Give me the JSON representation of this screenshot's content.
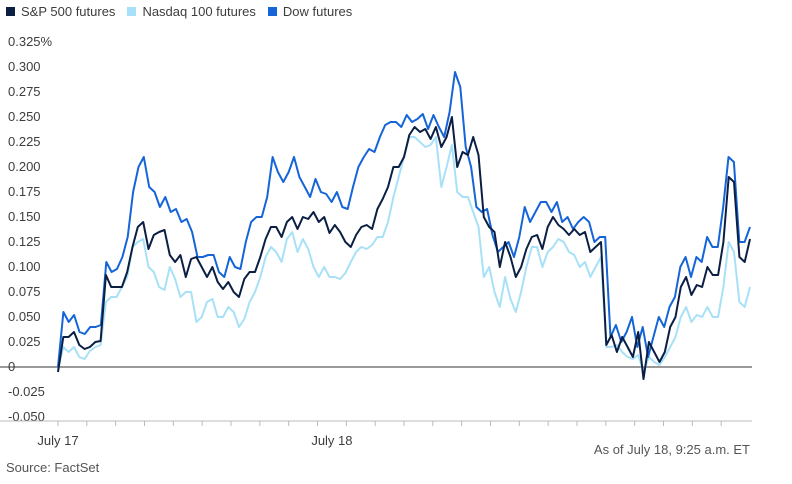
{
  "chart_data": {
    "type": "line",
    "ylim": [
      -0.05,
      0.325
    ],
    "y_ticks": [
      "0.325%",
      "0.300",
      "0.275",
      "0.250",
      "0.225",
      "0.200",
      "0.175",
      "0.150",
      "0.125",
      "0.100",
      "0.075",
      "0.050",
      "0.025",
      "0",
      "-0.025",
      "-0.050"
    ],
    "y_tick_values": [
      0.325,
      0.3,
      0.275,
      0.25,
      0.225,
      0.2,
      0.175,
      0.15,
      0.125,
      0.1,
      0.075,
      0.05,
      0.025,
      0,
      -0.025,
      -0.05
    ],
    "x_labels": [
      "July 17",
      "July 18"
    ],
    "grid": false,
    "legend_position": "top-left",
    "series": [
      {
        "name": "S&P 500 futures",
        "color": "#0b1f44",
        "values": [
          -0.005,
          0.03,
          0.03,
          0.035,
          0.022,
          0.018,
          0.02,
          0.025,
          0.026,
          0.092,
          0.08,
          0.08,
          0.08,
          0.095,
          0.12,
          0.14,
          0.145,
          0.118,
          0.132,
          0.135,
          0.137,
          0.112,
          0.105,
          0.112,
          0.09,
          0.108,
          0.11,
          0.1,
          0.09,
          0.1,
          0.085,
          0.078,
          0.085,
          0.075,
          0.07,
          0.088,
          0.095,
          0.095,
          0.11,
          0.128,
          0.14,
          0.14,
          0.13,
          0.145,
          0.15,
          0.138,
          0.15,
          0.148,
          0.155,
          0.145,
          0.15,
          0.134,
          0.142,
          0.135,
          0.125,
          0.12,
          0.132,
          0.14,
          0.142,
          0.138,
          0.158,
          0.168,
          0.18,
          0.2,
          0.2,
          0.21,
          0.232,
          0.24,
          0.235,
          0.238,
          0.228,
          0.24,
          0.22,
          0.23,
          0.25,
          0.2,
          0.215,
          0.212,
          0.23,
          0.212,
          0.15,
          0.14,
          0.135,
          0.1,
          0.125,
          0.11,
          0.09,
          0.1,
          0.118,
          0.13,
          0.132,
          0.118,
          0.14,
          0.15,
          0.142,
          0.138,
          0.132,
          0.138,
          0.132,
          0.135,
          0.115,
          0.12,
          0.125,
          0.022,
          0.032,
          0.015,
          0.03,
          0.02,
          0.01,
          0.035,
          -0.012,
          0.025,
          0.015,
          0.005,
          0.015,
          0.04,
          0.05,
          0.08,
          0.09,
          0.072,
          0.082,
          0.08,
          0.1,
          0.092,
          0.092,
          0.125,
          0.19,
          0.185,
          0.11,
          0.105,
          0.128
        ]
      },
      {
        "name": "Nasdaq 100 futures",
        "color": "#a8e1f7",
        "values": [
          -0.003,
          0.02,
          0.015,
          0.02,
          0.01,
          0.008,
          0.016,
          0.02,
          0.022,
          0.065,
          0.07,
          0.07,
          0.08,
          0.09,
          0.12,
          0.125,
          0.128,
          0.1,
          0.095,
          0.08,
          0.077,
          0.1,
          0.088,
          0.07,
          0.075,
          0.075,
          0.045,
          0.05,
          0.065,
          0.068,
          0.05,
          0.05,
          0.06,
          0.055,
          0.04,
          0.048,
          0.065,
          0.075,
          0.09,
          0.11,
          0.12,
          0.115,
          0.105,
          0.128,
          0.135,
          0.115,
          0.128,
          0.118,
          0.1,
          0.09,
          0.1,
          0.09,
          0.09,
          0.088,
          0.094,
          0.105,
          0.115,
          0.12,
          0.118,
          0.122,
          0.13,
          0.13,
          0.145,
          0.17,
          0.19,
          0.21,
          0.23,
          0.23,
          0.225,
          0.22,
          0.222,
          0.23,
          0.18,
          0.2,
          0.222,
          0.175,
          0.17,
          0.17,
          0.155,
          0.14,
          0.09,
          0.1,
          0.075,
          0.06,
          0.09,
          0.068,
          0.055,
          0.075,
          0.1,
          0.12,
          0.12,
          0.1,
          0.115,
          0.12,
          0.128,
          0.125,
          0.115,
          0.112,
          0.1,
          0.105,
          0.09,
          0.1,
          0.11,
          0.02,
          0.02,
          0.022,
          0.015,
          0.01,
          0.008,
          0.012,
          -0.005,
          0.01,
          0.005,
          0.002,
          0.01,
          0.02,
          0.03,
          0.05,
          0.06,
          0.045,
          0.052,
          0.05,
          0.06,
          0.05,
          0.05,
          0.08,
          0.125,
          0.115,
          0.065,
          0.06,
          0.08
        ]
      },
      {
        "name": "Dow futures",
        "color": "#1565d8",
        "values": [
          0.0,
          0.055,
          0.045,
          0.052,
          0.035,
          0.033,
          0.04,
          0.04,
          0.042,
          0.105,
          0.095,
          0.098,
          0.11,
          0.13,
          0.175,
          0.2,
          0.21,
          0.18,
          0.175,
          0.16,
          0.17,
          0.155,
          0.158,
          0.145,
          0.148,
          0.135,
          0.11,
          0.11,
          0.112,
          0.112,
          0.095,
          0.09,
          0.11,
          0.1,
          0.098,
          0.125,
          0.145,
          0.15,
          0.15,
          0.17,
          0.21,
          0.195,
          0.185,
          0.195,
          0.21,
          0.19,
          0.18,
          0.17,
          0.188,
          0.175,
          0.173,
          0.165,
          0.175,
          0.16,
          0.158,
          0.18,
          0.2,
          0.21,
          0.218,
          0.215,
          0.23,
          0.242,
          0.245,
          0.245,
          0.24,
          0.252,
          0.245,
          0.248,
          0.253,
          0.238,
          0.252,
          0.24,
          0.23,
          0.255,
          0.295,
          0.28,
          0.22,
          0.2,
          0.16,
          0.155,
          0.158,
          0.132,
          0.115,
          0.12,
          0.125,
          0.11,
          0.13,
          0.16,
          0.145,
          0.155,
          0.165,
          0.165,
          0.155,
          0.165,
          0.145,
          0.15,
          0.138,
          0.145,
          0.15,
          0.145,
          0.125,
          0.13,
          0.13,
          0.03,
          0.042,
          0.025,
          0.035,
          0.05,
          0.02,
          0.04,
          0.01,
          0.03,
          0.05,
          0.04,
          0.06,
          0.07,
          0.1,
          0.11,
          0.09,
          0.11,
          0.105,
          0.13,
          0.12,
          0.12,
          0.16,
          0.21,
          0.205,
          0.125,
          0.125,
          0.14
        ]
      }
    ]
  },
  "note": "As of July 18, 9:25 a.m. ET",
  "source": "Source: FactSet"
}
